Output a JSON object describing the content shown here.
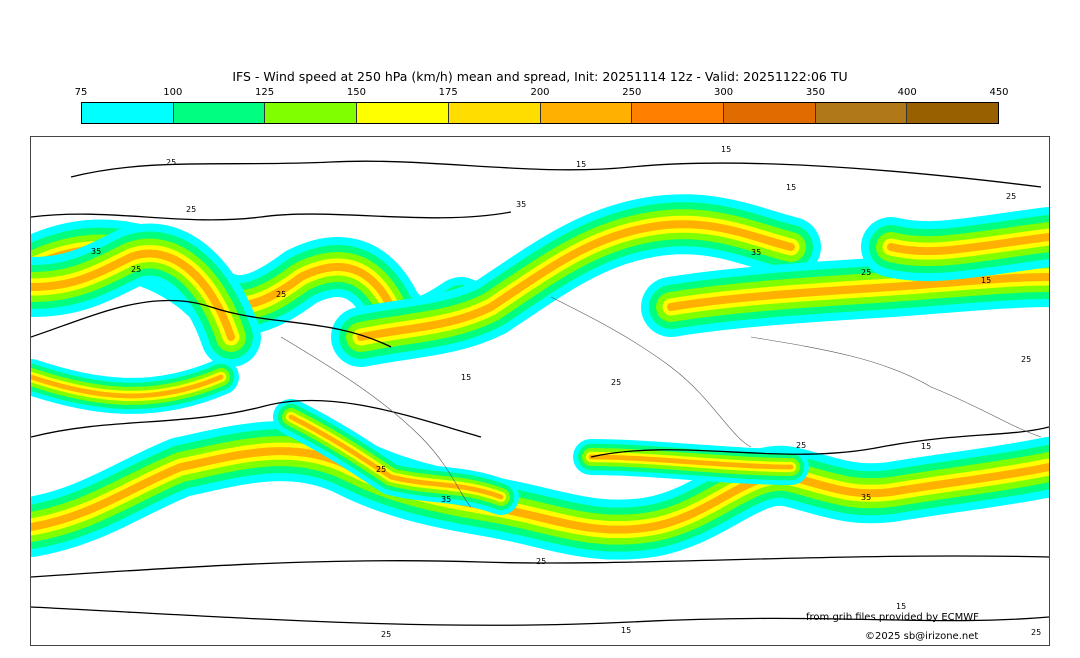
{
  "title": "IFS - Wind speed at 250 hPa (km/h) mean and spread, Init: 20251114 12z - Valid: 20251122:06 TU",
  "colorbar": {
    "ticks": [
      "75",
      "100",
      "125",
      "150",
      "175",
      "200",
      "250",
      "300",
      "350",
      "400",
      "450"
    ],
    "colors": [
      "#00ffff",
      "#00ff80",
      "#80ff00",
      "#ffff00",
      "#ffdd00",
      "#ffb000",
      "#ff8000",
      "#e06c00",
      "#b07818",
      "#996000"
    ]
  },
  "map": {
    "contour_labels": [
      "25",
      "15",
      "25",
      "35",
      "35",
      "25",
      "15",
      "15",
      "25",
      "35",
      "25",
      "15",
      "15",
      "25",
      "25",
      "35",
      "25",
      "25",
      "35",
      "25",
      "15",
      "25",
      "15",
      "15",
      "25",
      "25"
    ]
  },
  "credits": {
    "source": "from grib files provided by ECMWF",
    "copyright": "©2025 sb@irizone.net"
  }
}
